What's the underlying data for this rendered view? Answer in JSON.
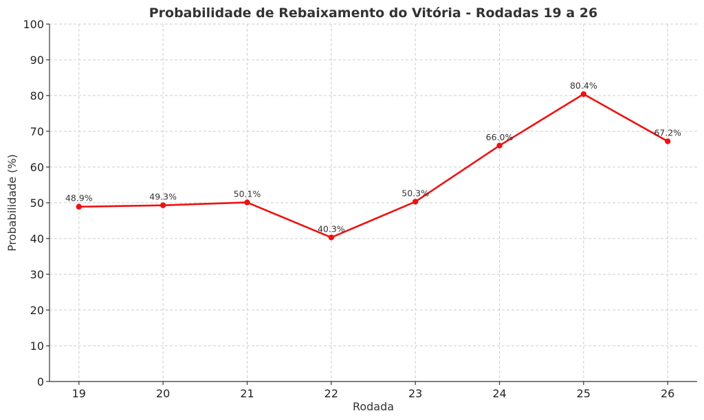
{
  "chart_data": {
    "type": "line",
    "title": "Probabilidade de Rebaixamento do Vitória - Rodadas 19 a 26",
    "xlabel": "Rodada",
    "ylabel": "Probabilidade (%)",
    "x": [
      19,
      20,
      21,
      22,
      23,
      24,
      25,
      26
    ],
    "values": [
      48.9,
      49.3,
      50.1,
      40.3,
      50.3,
      66.0,
      80.4,
      67.2
    ],
    "data_labels": [
      "48.9%",
      "49.3%",
      "50.1%",
      "40.3%",
      "50.3%",
      "66.0%",
      "80.4%",
      "67.2%"
    ],
    "x_ticks": [
      "19",
      "20",
      "21",
      "22",
      "23",
      "24",
      "25",
      "26"
    ],
    "y_ticks": [
      "0",
      "10",
      "20",
      "30",
      "40",
      "50",
      "60",
      "70",
      "80",
      "90",
      "100"
    ],
    "xlim": [
      18.65,
      26.35
    ],
    "ylim": [
      0,
      100
    ],
    "grid": true,
    "line_color": "#ee1111",
    "marker": "circle"
  }
}
